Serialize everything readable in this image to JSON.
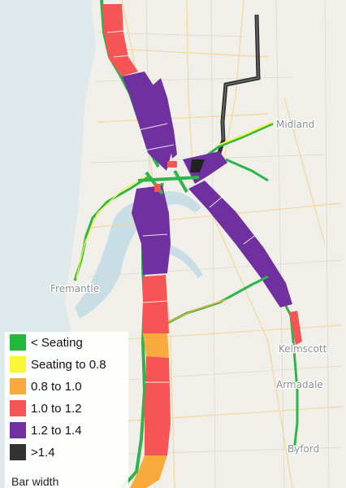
{
  "legend": {
    "items": [
      {
        "label": "< Seating",
        "color": "#22b83a"
      },
      {
        "label": "Seating to 0.8",
        "color": "#f7f733"
      },
      {
        "label": "0.8 to 1.0",
        "color": "#f8ab3c"
      },
      {
        "label": "1.0 to 1.2",
        "color": "#f55555"
      },
      {
        "label": "1.2 to 1.4",
        "color": "#7030a0"
      },
      {
        "label": ">1.4",
        "color": "#333333"
      }
    ],
    "footer": "Bar width"
  },
  "places": {
    "midland": "Midland",
    "fremantle": "Fremantle",
    "kelmscott": "Kelmscott",
    "armadale": "Armadale",
    "byford": "Byford"
  },
  "colors": {
    "ocean": "#dfe8ea",
    "land": "#f1efe9",
    "water": "#c9dde4",
    "road": "#f6d79a",
    "route_base": "#2eb44a"
  }
}
